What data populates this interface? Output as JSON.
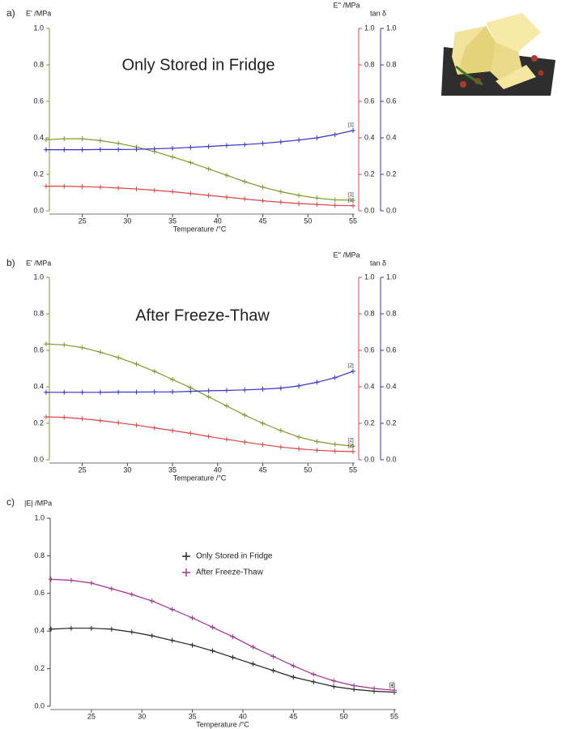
{
  "chart_data": [
    {
      "type": "line",
      "panel_label": "a)",
      "title": "Only Stored in Fridge",
      "x_label": "Temperature /°C",
      "y_label": "E' /MPa",
      "y2_label": "E'' /MPa",
      "y3_label": "tan δ",
      "x": [
        21,
        23,
        25,
        27,
        29,
        31,
        33,
        35,
        37,
        39,
        41,
        43,
        45,
        47,
        49,
        51,
        53,
        55
      ],
      "xlim": [
        21,
        55
      ],
      "xticks": [
        25,
        30,
        35,
        40,
        45,
        50,
        55
      ],
      "ylim": [
        0,
        1
      ],
      "yticks": [
        {
          "value": 0,
          "label": "0.0"
        },
        0.2,
        0.4,
        0.6,
        0.8,
        {
          "value": 1,
          "label": "1.0"
        }
      ],
      "y2lim": [
        0,
        1
      ],
      "y2ticks": [
        {
          "value": 0,
          "label": "0.0"
        },
        0.2,
        0.4,
        0.6,
        0.8,
        {
          "value": 1,
          "label": "1.0"
        }
      ],
      "y3lim": [
        0,
        1
      ],
      "y3ticks": [
        {
          "value": 0,
          "label": "0.0"
        },
        0.2,
        0.4,
        0.6,
        0.8,
        {
          "value": 1,
          "label": "1.0"
        }
      ],
      "series": [
        {
          "color": "#7f9a2c",
          "axis": "y",
          "end_label": "[1]",
          "values": [
            0.39,
            0.395,
            0.395,
            0.385,
            0.37,
            0.35,
            0.325,
            0.295,
            0.265,
            0.23,
            0.195,
            0.16,
            0.13,
            0.105,
            0.085,
            0.07,
            0.06,
            0.058
          ]
        },
        {
          "color": "#d9474a",
          "axis": "y2",
          "end_label": "[1]",
          "values": [
            0.135,
            0.135,
            0.133,
            0.13,
            0.125,
            0.12,
            0.113,
            0.105,
            0.095,
            0.085,
            0.075,
            0.065,
            0.055,
            0.047,
            0.04,
            0.035,
            0.03,
            0.028
          ]
        },
        {
          "color": "#3535c8",
          "axis": "y3",
          "end_label": "[1]",
          "values": [
            0.335,
            0.335,
            0.335,
            0.336,
            0.336,
            0.337,
            0.34,
            0.343,
            0.348,
            0.353,
            0.358,
            0.363,
            0.37,
            0.378,
            0.388,
            0.4,
            0.418,
            0.44
          ]
        }
      ]
    },
    {
      "type": "line",
      "panel_label": "b)",
      "title": "After Freeze-Thaw",
      "x_label": "Temperature /°C",
      "y_label": "E' /MPa",
      "y2_label": "E'' /MPa",
      "y3_label": "tan δ",
      "x": [
        21,
        23,
        25,
        27,
        29,
        31,
        33,
        35,
        37,
        39,
        41,
        43,
        45,
        47,
        49,
        51,
        53,
        55
      ],
      "xlim": [
        21,
        55
      ],
      "xticks": [
        25,
        30,
        35,
        40,
        45,
        50,
        55
      ],
      "ylim": [
        0,
        1
      ],
      "yticks": [
        {
          "value": 0,
          "label": "0.0"
        },
        0.2,
        0.4,
        0.6,
        0.8,
        {
          "value": 1,
          "label": "1.0"
        }
      ],
      "y2lim": [
        0,
        1
      ],
      "y2ticks": [
        {
          "value": 0,
          "label": "0.0"
        },
        0.2,
        0.4,
        0.6,
        0.8,
        {
          "value": 1,
          "label": "1.0"
        }
      ],
      "y3lim": [
        0,
        1
      ],
      "y3ticks": [
        {
          "value": 0,
          "label": "0.0"
        },
        0.2,
        0.4,
        0.6,
        0.8,
        {
          "value": 1,
          "label": "1.0"
        }
      ],
      "series": [
        {
          "color": "#7f9a2c",
          "axis": "y",
          "end_label": "[2]",
          "values": [
            0.635,
            0.63,
            0.615,
            0.59,
            0.56,
            0.525,
            0.485,
            0.44,
            0.395,
            0.345,
            0.295,
            0.245,
            0.2,
            0.16,
            0.125,
            0.1,
            0.085,
            0.075
          ]
        },
        {
          "color": "#d9474a",
          "axis": "y2",
          "end_label": "[2]",
          "values": [
            0.235,
            0.233,
            0.225,
            0.215,
            0.203,
            0.19,
            0.175,
            0.16,
            0.145,
            0.128,
            0.112,
            0.097,
            0.083,
            0.07,
            0.06,
            0.052,
            0.047,
            0.045
          ]
        },
        {
          "color": "#3535c8",
          "axis": "y3",
          "end_label": "[2]",
          "values": [
            0.37,
            0.37,
            0.37,
            0.37,
            0.371,
            0.371,
            0.372,
            0.372,
            0.375,
            0.378,
            0.38,
            0.383,
            0.387,
            0.393,
            0.405,
            0.425,
            0.45,
            0.485
          ]
        }
      ]
    },
    {
      "type": "line",
      "panel_label": "c)",
      "x_label": "Temperature /°C",
      "y_label": "|E| /MPa",
      "x": [
        21,
        23,
        25,
        27,
        29,
        31,
        33,
        35,
        37,
        39,
        41,
        43,
        45,
        47,
        49,
        51,
        53,
        55
      ],
      "xlim": [
        21,
        55
      ],
      "xticks": [
        25,
        30,
        35,
        40,
        45,
        50,
        55
      ],
      "ylim": [
        0,
        1
      ],
      "yticks": [
        {
          "value": 0,
          "label": "0.0"
        },
        0.2,
        0.4,
        0.6,
        0.8,
        {
          "value": 1,
          "label": "1.0"
        }
      ],
      "series": [
        {
          "name": "Only Stored in Fridge",
          "color": "#222222",
          "axis": "y",
          "end_label": "[1]",
          "values": [
            0.41,
            0.415,
            0.415,
            0.41,
            0.395,
            0.375,
            0.35,
            0.325,
            0.295,
            0.26,
            0.225,
            0.19,
            0.155,
            0.13,
            0.105,
            0.09,
            0.08,
            0.075
          ]
        },
        {
          "name": "After Freeze-Thaw",
          "color": "#a0308f",
          "axis": "y",
          "end_label": "[2]",
          "values": [
            0.675,
            0.67,
            0.655,
            0.625,
            0.595,
            0.56,
            0.515,
            0.47,
            0.42,
            0.37,
            0.315,
            0.265,
            0.215,
            0.17,
            0.135,
            0.11,
            0.095,
            0.085
          ]
        }
      ]
    }
  ]
}
